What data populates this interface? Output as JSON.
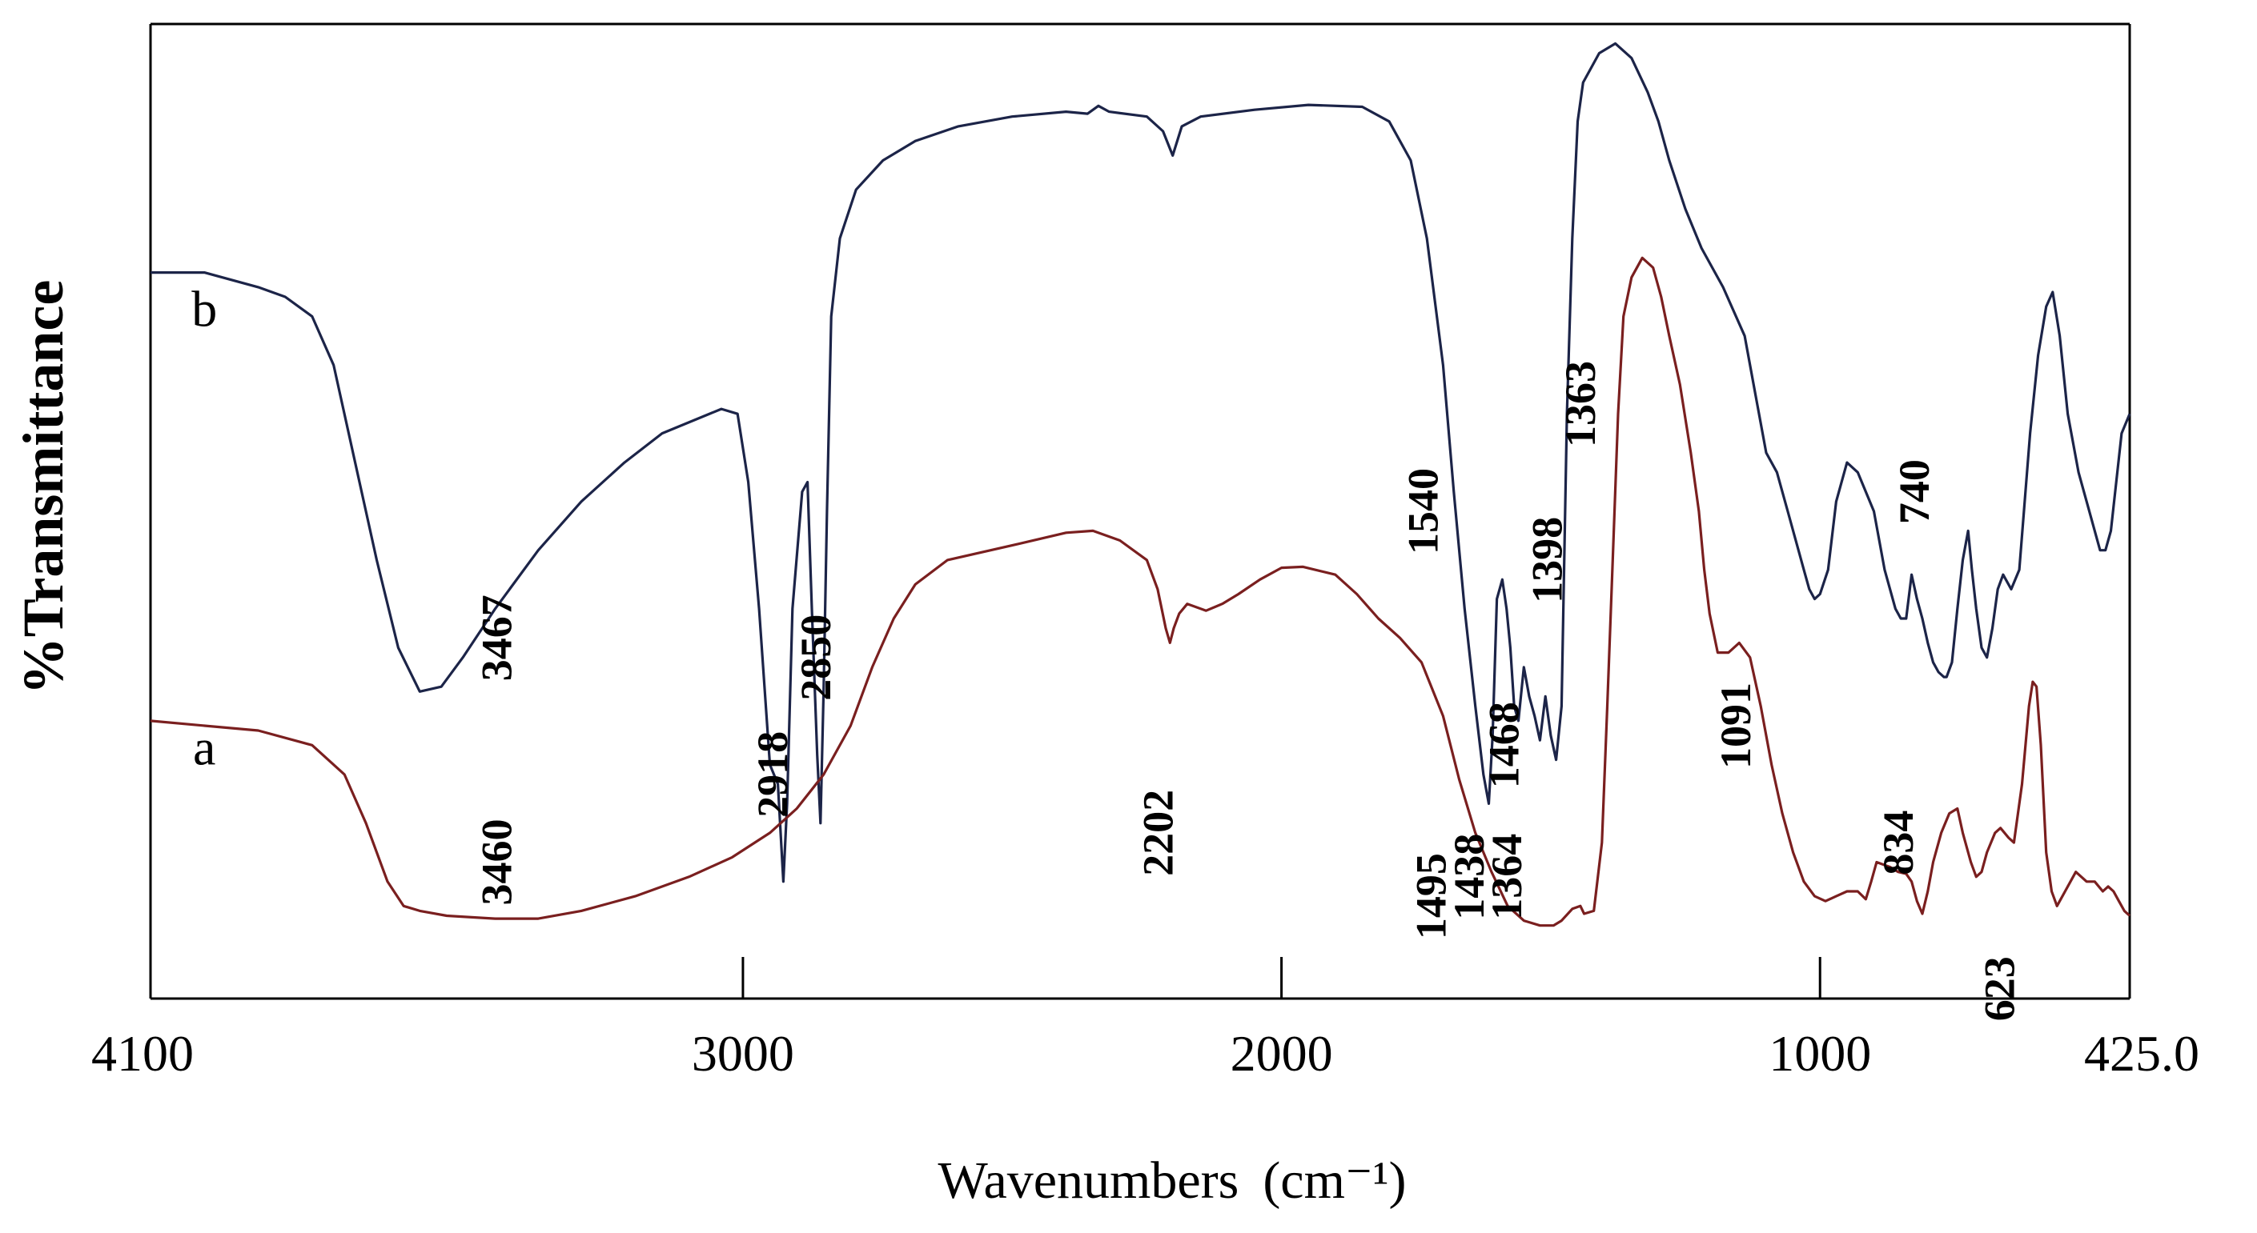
{
  "chart_data": {
    "type": "line",
    "title": "",
    "xlabel": "Wavenumbers",
    "xlabel_unit": "(cm⁻¹)",
    "ylabel": "%Transmittance",
    "xlim": [
      4100,
      425
    ],
    "ylim": [
      0,
      100
    ],
    "x_ticks": [
      3000,
      2000,
      1000
    ],
    "x_tick_labels": [
      {
        "value": 4100,
        "label": "4100"
      },
      {
        "value": 3000,
        "label": "3000"
      },
      {
        "value": 2000,
        "label": "2000"
      },
      {
        "value": 1000,
        "label": "1000"
      },
      {
        "value": 425,
        "label": "425.0"
      }
    ],
    "y_ticks_shown": false,
    "grid": false,
    "series": [
      {
        "name": "b",
        "color": "#1c2448",
        "label_at": [
          4000,
          69
        ],
        "points": [
          [
            4100,
            74.5
          ],
          [
            4000,
            74.5
          ],
          [
            3900,
            73
          ],
          [
            3850,
            72
          ],
          [
            3800,
            70
          ],
          [
            3760,
            65
          ],
          [
            3720,
            55
          ],
          [
            3680,
            45
          ],
          [
            3640,
            36
          ],
          [
            3600,
            31.5
          ],
          [
            3560,
            32
          ],
          [
            3520,
            35
          ],
          [
            3460,
            40
          ],
          [
            3380,
            46
          ],
          [
            3300,
            51
          ],
          [
            3220,
            55
          ],
          [
            3150,
            58
          ],
          [
            3040,
            60.5
          ],
          [
            3010,
            60
          ],
          [
            2990,
            53
          ],
          [
            2970,
            40
          ],
          [
            2950,
            24
          ],
          [
            2935,
            22
          ],
          [
            2925,
            12
          ],
          [
            2918,
            20
          ],
          [
            2908,
            40
          ],
          [
            2890,
            52
          ],
          [
            2880,
            53
          ],
          [
            2872,
            40
          ],
          [
            2862,
            25
          ],
          [
            2856,
            18
          ],
          [
            2850,
            32
          ],
          [
            2844,
            50
          ],
          [
            2836,
            70
          ],
          [
            2820,
            78
          ],
          [
            2790,
            83
          ],
          [
            2740,
            86
          ],
          [
            2680,
            88
          ],
          [
            2600,
            89.5
          ],
          [
            2500,
            90.5
          ],
          [
            2400,
            91
          ],
          [
            2360,
            90.8
          ],
          [
            2340,
            91.6
          ],
          [
            2320,
            91
          ],
          [
            2250,
            90.5
          ],
          [
            2220,
            89
          ],
          [
            2202,
            86.5
          ],
          [
            2185,
            89.5
          ],
          [
            2150,
            90.5
          ],
          [
            2050,
            91.2
          ],
          [
            1950,
            91.7
          ],
          [
            1850,
            91.5
          ],
          [
            1800,
            90
          ],
          [
            1760,
            86
          ],
          [
            1730,
            78
          ],
          [
            1700,
            65
          ],
          [
            1680,
            52
          ],
          [
            1660,
            40
          ],
          [
            1640,
            30
          ],
          [
            1625,
            23
          ],
          [
            1615,
            20
          ],
          [
            1608,
            27
          ],
          [
            1600,
            41
          ],
          [
            1590,
            43
          ],
          [
            1582,
            40
          ],
          [
            1575,
            36
          ],
          [
            1568,
            30
          ],
          [
            1560,
            28.5
          ],
          [
            1550,
            34
          ],
          [
            1540,
            31
          ],
          [
            1530,
            29
          ],
          [
            1520,
            26.5
          ],
          [
            1510,
            31
          ],
          [
            1500,
            27
          ],
          [
            1490,
            24.5
          ],
          [
            1480,
            30
          ],
          [
            1470,
            60
          ],
          [
            1460,
            78
          ],
          [
            1450,
            90
          ],
          [
            1440,
            94
          ],
          [
            1410,
            97
          ],
          [
            1380,
            98
          ],
          [
            1350,
            96.5
          ],
          [
            1320,
            93
          ],
          [
            1300,
            90
          ],
          [
            1280,
            86
          ],
          [
            1250,
            81
          ],
          [
            1220,
            77
          ],
          [
            1180,
            73
          ],
          [
            1140,
            68
          ],
          [
            1120,
            62
          ],
          [
            1100,
            56
          ],
          [
            1080,
            54
          ],
          [
            1060,
            50
          ],
          [
            1040,
            46
          ],
          [
            1030,
            44
          ],
          [
            1020,
            42
          ],
          [
            1010,
            41
          ],
          [
            1000,
            41.5
          ],
          [
            985,
            44
          ],
          [
            970,
            51
          ],
          [
            950,
            55
          ],
          [
            930,
            54
          ],
          [
            900,
            50
          ],
          [
            880,
            44
          ],
          [
            860,
            40
          ],
          [
            850,
            39
          ],
          [
            840,
            39
          ],
          [
            830,
            43.5
          ],
          [
            820,
            41
          ],
          [
            810,
            39
          ],
          [
            800,
            36.5
          ],
          [
            790,
            34.5
          ],
          [
            780,
            33.5
          ],
          [
            770,
            33
          ],
          [
            765,
            33
          ],
          [
            755,
            34.5
          ],
          [
            745,
            40
          ],
          [
            735,
            45
          ],
          [
            725,
            48
          ],
          [
            718,
            44
          ],
          [
            710,
            40
          ],
          [
            700,
            36
          ],
          [
            690,
            35
          ],
          [
            680,
            38
          ],
          [
            670,
            42
          ],
          [
            660,
            43.5
          ],
          [
            645,
            42
          ],
          [
            630,
            44
          ],
          [
            610,
            58
          ],
          [
            595,
            66
          ],
          [
            580,
            71
          ],
          [
            568,
            72.5
          ],
          [
            555,
            68
          ],
          [
            540,
            60
          ],
          [
            520,
            54
          ],
          [
            505,
            51
          ],
          [
            490,
            48
          ],
          [
            480,
            46
          ],
          [
            470,
            46
          ],
          [
            460,
            48
          ],
          [
            450,
            53
          ],
          [
            440,
            58
          ],
          [
            425,
            60
          ]
        ]
      },
      {
        "name": "a",
        "color": "#7a1f1f",
        "label_at": [
          4000,
          24
        ],
        "points": [
          [
            4100,
            28.5
          ],
          [
            3900,
            27.5
          ],
          [
            3800,
            26
          ],
          [
            3740,
            23
          ],
          [
            3700,
            18
          ],
          [
            3660,
            12
          ],
          [
            3630,
            9.5
          ],
          [
            3600,
            9
          ],
          [
            3550,
            8.5
          ],
          [
            3460,
            8.2
          ],
          [
            3380,
            8.2
          ],
          [
            3300,
            9
          ],
          [
            3200,
            10.5
          ],
          [
            3100,
            12.5
          ],
          [
            3020,
            14.5
          ],
          [
            2950,
            17
          ],
          [
            2900,
            19.5
          ],
          [
            2850,
            23
          ],
          [
            2800,
            28
          ],
          [
            2760,
            34
          ],
          [
            2720,
            39
          ],
          [
            2680,
            42.5
          ],
          [
            2620,
            45
          ],
          [
            2500,
            46.5
          ],
          [
            2400,
            47.8
          ],
          [
            2350,
            48
          ],
          [
            2300,
            47
          ],
          [
            2250,
            45
          ],
          [
            2230,
            42
          ],
          [
            2215,
            38
          ],
          [
            2207,
            36.5
          ],
          [
            2200,
            38
          ],
          [
            2190,
            39.5
          ],
          [
            2175,
            40.5
          ],
          [
            2140,
            39.8
          ],
          [
            2110,
            40.5
          ],
          [
            2080,
            41.5
          ],
          [
            2040,
            43
          ],
          [
            2000,
            44.2
          ],
          [
            1960,
            44.3
          ],
          [
            1900,
            43.5
          ],
          [
            1860,
            41.5
          ],
          [
            1820,
            39
          ],
          [
            1780,
            37
          ],
          [
            1740,
            34.5
          ],
          [
            1700,
            29
          ],
          [
            1670,
            22.5
          ],
          [
            1640,
            17
          ],
          [
            1610,
            13
          ],
          [
            1580,
            9.5
          ],
          [
            1550,
            8
          ],
          [
            1520,
            7.5
          ],
          [
            1495,
            7.5
          ],
          [
            1480,
            8
          ],
          [
            1460,
            9.2
          ],
          [
            1445,
            9.5
          ],
          [
            1438,
            8.7
          ],
          [
            1420,
            9
          ],
          [
            1405,
            16
          ],
          [
            1395,
            30
          ],
          [
            1385,
            45
          ],
          [
            1375,
            60
          ],
          [
            1365,
            70
          ],
          [
            1350,
            74
          ],
          [
            1330,
            76
          ],
          [
            1310,
            75
          ],
          [
            1295,
            72
          ],
          [
            1280,
            68
          ],
          [
            1260,
            63
          ],
          [
            1240,
            56
          ],
          [
            1225,
            50
          ],
          [
            1215,
            44
          ],
          [
            1205,
            39.5
          ],
          [
            1190,
            35.5
          ],
          [
            1170,
            35.5
          ],
          [
            1150,
            36.5
          ],
          [
            1130,
            35
          ],
          [
            1110,
            30
          ],
          [
            1090,
            24
          ],
          [
            1070,
            19
          ],
          [
            1050,
            15
          ],
          [
            1030,
            12
          ],
          [
            1010,
            10.5
          ],
          [
            990,
            10
          ],
          [
            970,
            10.5
          ],
          [
            950,
            11
          ],
          [
            930,
            11
          ],
          [
            915,
            10.2
          ],
          [
            905,
            12
          ],
          [
            895,
            14
          ],
          [
            870,
            13.5
          ],
          [
            855,
            13
          ],
          [
            840,
            12.8
          ],
          [
            830,
            12
          ],
          [
            820,
            10
          ],
          [
            810,
            8.7
          ],
          [
            800,
            11
          ],
          [
            790,
            14
          ],
          [
            775,
            17
          ],
          [
            760,
            19
          ],
          [
            745,
            19.5
          ],
          [
            735,
            17
          ],
          [
            720,
            14
          ],
          [
            710,
            12.5
          ],
          [
            700,
            13
          ],
          [
            690,
            15
          ],
          [
            675,
            17
          ],
          [
            665,
            17.5
          ],
          [
            650,
            16.5
          ],
          [
            640,
            16
          ],
          [
            625,
            22
          ],
          [
            612,
            30
          ],
          [
            605,
            32.5
          ],
          [
            598,
            32
          ],
          [
            590,
            26
          ],
          [
            580,
            15
          ],
          [
            570,
            11
          ],
          [
            560,
            9.5
          ],
          [
            545,
            11
          ],
          [
            525,
            13
          ],
          [
            505,
            12
          ],
          [
            490,
            12
          ],
          [
            475,
            11
          ],
          [
            465,
            11.5
          ],
          [
            455,
            11
          ],
          [
            445,
            10
          ],
          [
            435,
            9
          ],
          [
            425,
            8.5
          ]
        ]
      }
    ],
    "annotations": [
      {
        "text": "3467",
        "x": 3430,
        "y": 37
      },
      {
        "text": "2918",
        "x": 2918,
        "y": 23
      },
      {
        "text": "2850",
        "x": 2838,
        "y": 35
      },
      {
        "text": "1540",
        "x": 1710,
        "y": 50
      },
      {
        "text": "1468",
        "x": 1560,
        "y": 26
      },
      {
        "text": "1398",
        "x": 1480,
        "y": 45
      },
      {
        "text": "1363",
        "x": 1418,
        "y": 61
      },
      {
        "text": "740",
        "x": 798,
        "y": 52
      },
      {
        "text": "3460",
        "x": 3430,
        "y": 14
      },
      {
        "text": "2202",
        "x": 2202,
        "y": 17
      },
      {
        "text": "1495",
        "x": 1695,
        "y": 10.5
      },
      {
        "text": "1438",
        "x": 1625,
        "y": 12.5
      },
      {
        "text": "1364",
        "x": 1555,
        "y": 12.5
      },
      {
        "text": "1091",
        "x": 1130,
        "y": 28
      },
      {
        "text": "834",
        "x": 828,
        "y": 16
      },
      {
        "text": "623",
        "x": 640,
        "y": 1
      }
    ]
  }
}
